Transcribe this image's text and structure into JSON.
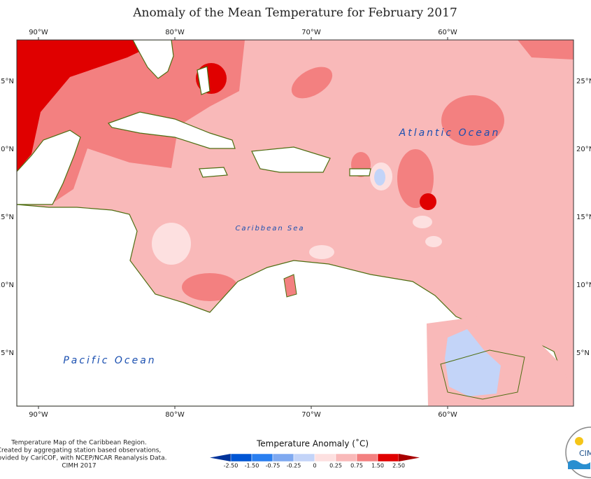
{
  "title": "Anomaly of the Mean Temperature for February 2017",
  "longitudes": [
    "90°W",
    "80°W",
    "70°W",
    "60°W"
  ],
  "latitudes": [
    "25°N",
    "20°N",
    "15°N",
    "10°N",
    "5°N"
  ],
  "labels": {
    "atlantic": "Atlantic Ocean",
    "caribbean": "Caribbean Sea",
    "pacific": "Pacific Ocean"
  },
  "credits": [
    "Temperature Map of the Caribbean Region.",
    "Created by aggregating station based observations,",
    "provided by CariCOF, with NCEP/NCAR Reanalysis Data.",
    "CIMH 2017"
  ],
  "legend": {
    "title": "Temperature Anomaly (˚C)",
    "ticks": [
      "-2.50",
      "-1.50",
      "-0.75",
      "-0.25",
      "0",
      "0.25",
      "0.75",
      "1.50",
      "2.50"
    ],
    "colors": [
      "#00339a",
      "#0055d4",
      "#2a7ff0",
      "#7fa9f0",
      "#c3d4f8",
      "#fde0e0",
      "#f9b9b9",
      "#f38080",
      "#e00000",
      "#a80000"
    ]
  },
  "logo": "CIMH"
}
